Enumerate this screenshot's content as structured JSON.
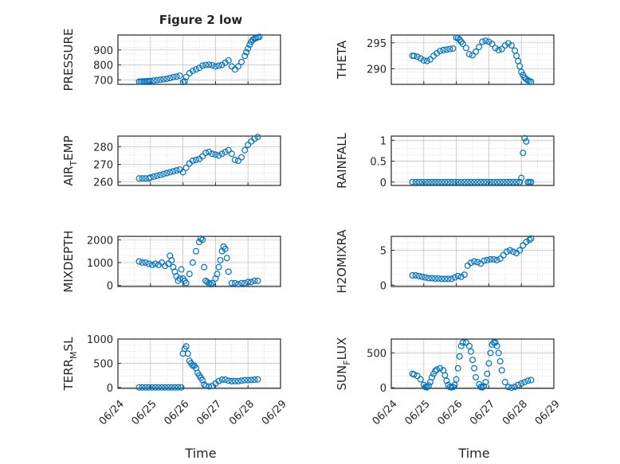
{
  "title": "Figure 2 low",
  "xlabel": "Time",
  "colors": {
    "marker": "#0072BD",
    "axis": "#262626",
    "grid": "#c8c8c8"
  },
  "x_ticks": [
    "06/24",
    "06/25",
    "06/26",
    "06/27",
    "06/28",
    "06/29"
  ],
  "chart_data": [
    {
      "type": "scatter",
      "name": "pressure",
      "ylabel": "PRESSURE",
      "ylim": [
        670,
        1000
      ],
      "yticks": [
        700,
        800,
        900
      ],
      "grid": true,
      "xlim": [
        "06/24",
        "06/29"
      ],
      "x": [
        0.65,
        0.7,
        0.75,
        0.8,
        0.85,
        0.9,
        0.95,
        1.0,
        1.1,
        1.2,
        1.3,
        1.4,
        1.5,
        1.6,
        1.7,
        1.8,
        1.9,
        2.0,
        2.05,
        2.1,
        2.2,
        2.3,
        2.4,
        2.5,
        2.6,
        2.7,
        2.8,
        2.9,
        3.0,
        3.1,
        3.2,
        3.3,
        3.4,
        3.5,
        3.6,
        3.7,
        3.8,
        3.9,
        3.95,
        4.0,
        4.05,
        4.1,
        4.15,
        4.2,
        4.25,
        4.3,
        4.35
      ],
      "y": [
        688,
        688,
        689,
        690,
        690,
        691,
        692,
        693,
        695,
        698,
        701,
        704,
        707,
        712,
        718,
        722,
        728,
        685,
        690,
        720,
        745,
        760,
        770,
        780,
        795,
        800,
        802,
        798,
        790,
        795,
        800,
        815,
        830,
        790,
        770,
        790,
        820,
        860,
        885,
        910,
        935,
        955,
        968,
        975,
        980,
        985,
        988
      ]
    },
    {
      "type": "scatter",
      "name": "theta",
      "ylabel": "THETA",
      "ylim": [
        287,
        296.5
      ],
      "yticks": [
        290,
        295
      ],
      "grid": true,
      "xlim": [
        "06/24",
        "06/29"
      ],
      "x": [
        0.65,
        0.7,
        0.8,
        0.9,
        1.0,
        1.1,
        1.2,
        1.3,
        1.4,
        1.5,
        1.6,
        1.7,
        1.8,
        1.9,
        2.0,
        2.05,
        2.1,
        2.15,
        2.2,
        2.3,
        2.4,
        2.5,
        2.6,
        2.7,
        2.8,
        2.9,
        3.0,
        3.1,
        3.2,
        3.3,
        3.4,
        3.5,
        3.6,
        3.7,
        3.8,
        3.85,
        3.9,
        3.95,
        4.0,
        4.05,
        4.1,
        4.15,
        4.2,
        4.25,
        4.3
      ],
      "y": [
        292.5,
        292.5,
        292.3,
        292.0,
        291.6,
        291.5,
        291.8,
        292.5,
        293.0,
        293.4,
        293.6,
        293.7,
        293.8,
        293.9,
        296.0,
        295.9,
        295.6,
        295.2,
        294.8,
        294.0,
        292.8,
        292.6,
        293.3,
        294.2,
        295.2,
        295.4,
        295.2,
        294.8,
        294.0,
        293.6,
        293.8,
        294.5,
        294.9,
        294.5,
        293.5,
        292.5,
        291.5,
        290.5,
        289.4,
        288.8,
        288.3,
        288.0,
        287.8,
        287.6,
        287.5
      ]
    },
    {
      "type": "scatter",
      "name": "air_temp",
      "ylabel": "AIR_TEMP",
      "ylim": [
        258,
        286
      ],
      "yticks": [
        260,
        270,
        280
      ],
      "grid": true,
      "xlim": [
        "06/24",
        "06/29"
      ],
      "x": [
        0.65,
        0.75,
        0.85,
        0.95,
        1.0,
        1.1,
        1.2,
        1.3,
        1.4,
        1.5,
        1.6,
        1.7,
        1.8,
        1.9,
        2.0,
        2.1,
        2.2,
        2.3,
        2.4,
        2.5,
        2.6,
        2.7,
        2.8,
        2.9,
        3.0,
        3.1,
        3.2,
        3.3,
        3.4,
        3.5,
        3.6,
        3.7,
        3.8,
        3.9,
        4.0,
        4.1,
        4.2,
        4.3
      ],
      "y": [
        262,
        262,
        262,
        262,
        262.5,
        263,
        263.5,
        264,
        264.5,
        265,
        265.5,
        266,
        266.5,
        267,
        265.5,
        268,
        270.5,
        272,
        272.5,
        273,
        274.5,
        276.5,
        277,
        276,
        275.5,
        275,
        276,
        277,
        278,
        276,
        272.5,
        272,
        274,
        278,
        281,
        283,
        284.5,
        285.5
      ]
    },
    {
      "type": "scatter",
      "name": "rainfall",
      "ylabel": "RAINFALL",
      "ylim": [
        -0.08,
        1.1
      ],
      "yticks": [
        0,
        0.5,
        1
      ],
      "grid": true,
      "xlim": [
        "06/24",
        "06/29"
      ],
      "x": [
        0.65,
        0.75,
        0.85,
        0.95,
        1.05,
        1.15,
        1.25,
        1.35,
        1.45,
        1.55,
        1.65,
        1.75,
        1.85,
        1.95,
        2.05,
        2.15,
        2.25,
        2.35,
        2.45,
        2.55,
        2.65,
        2.75,
        2.85,
        2.95,
        3.05,
        3.15,
        3.25,
        3.35,
        3.45,
        3.55,
        3.65,
        3.75,
        3.85,
        3.95,
        4.0,
        4.05,
        4.1,
        4.15,
        4.2,
        4.25,
        4.3
      ],
      "y": [
        0,
        0,
        0,
        0,
        0,
        0,
        0,
        0,
        0,
        0,
        0,
        0,
        0,
        0,
        0,
        0,
        0,
        0,
        0,
        0,
        0,
        0,
        0,
        0,
        0,
        0,
        0,
        0,
        0,
        0,
        0,
        0,
        0,
        0,
        0.1,
        0.7,
        1.05,
        0.97,
        0,
        0,
        0
      ]
    },
    {
      "type": "scatter",
      "name": "mixdepth",
      "ylabel": "MIXDEPTH",
      "ylim": [
        -50,
        2150
      ],
      "yticks": [
        0,
        1000,
        2000
      ],
      "grid": true,
      "xlim": [
        "06/24",
        "06/29"
      ],
      "x": [
        0.65,
        0.75,
        0.85,
        0.95,
        1.05,
        1.15,
        1.25,
        1.35,
        1.45,
        1.55,
        1.6,
        1.65,
        1.7,
        1.75,
        1.8,
        1.85,
        1.9,
        1.95,
        2.0,
        2.05,
        2.1,
        2.2,
        2.3,
        2.4,
        2.5,
        2.55,
        2.6,
        2.65,
        2.7,
        2.75,
        2.8,
        2.85,
        2.9,
        3.0,
        3.05,
        3.1,
        3.15,
        3.2,
        3.25,
        3.3,
        3.35,
        3.4,
        3.5,
        3.6,
        3.7,
        3.8,
        3.9,
        4.0,
        4.1,
        4.2,
        4.3
      ],
      "y": [
        1050,
        1000,
        1000,
        950,
        900,
        950,
        900,
        1000,
        850,
        950,
        1300,
        1100,
        800,
        600,
        400,
        200,
        300,
        700,
        300,
        200,
        100,
        500,
        1000,
        1500,
        1900,
        2050,
        2000,
        800,
        200,
        150,
        100,
        50,
        100,
        300,
        500,
        800,
        1100,
        1500,
        1700,
        1600,
        1200,
        600,
        100,
        100,
        50,
        100,
        100,
        150,
        150,
        200,
        200
      ]
    },
    {
      "type": "scatter",
      "name": "h2omixra",
      "ylabel": "H2OMIXRA",
      "ylim": [
        -0.2,
        7
      ],
      "yticks": [
        0,
        5
      ],
      "grid": true,
      "xlim": [
        "06/24",
        "06/29"
      ],
      "x": [
        0.65,
        0.75,
        0.85,
        0.95,
        1.05,
        1.15,
        1.25,
        1.35,
        1.45,
        1.55,
        1.65,
        1.75,
        1.85,
        1.95,
        2.05,
        2.15,
        2.25,
        2.35,
        2.45,
        2.55,
        2.65,
        2.75,
        2.85,
        2.95,
        3.05,
        3.15,
        3.25,
        3.35,
        3.45,
        3.55,
        3.65,
        3.75,
        3.85,
        3.95,
        4.05,
        4.15,
        4.25,
        4.3
      ],
      "y": [
        1.4,
        1.4,
        1.3,
        1.2,
        1.1,
        1.0,
        1.0,
        0.95,
        0.95,
        0.9,
        0.9,
        0.9,
        0.9,
        1.1,
        1.3,
        1.2,
        1.5,
        2.8,
        3.2,
        3.4,
        3.3,
        3.1,
        3.5,
        3.6,
        3.7,
        3.7,
        3.6,
        3.8,
        4.3,
        4.8,
        5.0,
        4.8,
        4.6,
        5.0,
        5.7,
        6.2,
        6.5,
        6.7
      ]
    },
    {
      "type": "scatter",
      "name": "terr_msl",
      "ylabel": "TERR_MSL",
      "ylim": [
        -20,
        1000
      ],
      "yticks": [
        0,
        500,
        1000
      ],
      "grid": true,
      "xlim": [
        "06/24",
        "06/29"
      ],
      "x": [
        0.65,
        0.75,
        0.85,
        0.95,
        1.05,
        1.15,
        1.25,
        1.35,
        1.45,
        1.55,
        1.65,
        1.75,
        1.85,
        1.95,
        2.0,
        2.05,
        2.1,
        2.15,
        2.2,
        2.25,
        2.3,
        2.35,
        2.4,
        2.45,
        2.5,
        2.55,
        2.6,
        2.65,
        2.7,
        2.8,
        2.9,
        3.0,
        3.1,
        3.2,
        3.3,
        3.4,
        3.5,
        3.6,
        3.7,
        3.8,
        3.9,
        4.0,
        4.1,
        4.2,
        4.3
      ],
      "y": [
        0,
        0,
        0,
        0,
        0,
        0,
        0,
        0,
        0,
        0,
        0,
        0,
        0,
        0,
        700,
        800,
        850,
        700,
        550,
        500,
        450,
        450,
        400,
        300,
        250,
        200,
        150,
        60,
        30,
        20,
        30,
        80,
        130,
        160,
        160,
        140,
        130,
        130,
        130,
        140,
        150,
        150,
        155,
        160,
        165
      ]
    },
    {
      "type": "scatter",
      "name": "sun_flux",
      "ylabel": "SUN_FLUX",
      "ylim": [
        -10,
        700
      ],
      "yticks": [
        0,
        500
      ],
      "grid": true,
      "xlim": [
        "06/24",
        "06/29"
      ],
      "x": [
        0.65,
        0.7,
        0.8,
        0.9,
        1.0,
        1.05,
        1.1,
        1.15,
        1.2,
        1.25,
        1.3,
        1.35,
        1.4,
        1.5,
        1.6,
        1.65,
        1.7,
        1.75,
        1.8,
        1.85,
        1.9,
        1.95,
        2.0,
        2.05,
        2.1,
        2.15,
        2.2,
        2.3,
        2.4,
        2.45,
        2.5,
        2.55,
        2.6,
        2.7,
        2.75,
        2.8,
        2.85,
        2.9,
        2.95,
        3.0,
        3.05,
        3.1,
        3.15,
        3.2,
        3.25,
        3.3,
        3.35,
        3.4,
        3.5,
        3.6,
        3.7,
        3.8,
        3.9,
        4.0,
        4.1,
        4.2,
        4.3
      ],
      "y": [
        200,
        190,
        170,
        120,
        40,
        10,
        5,
        30,
        80,
        150,
        200,
        240,
        260,
        280,
        250,
        180,
        100,
        40,
        10,
        5,
        10,
        40,
        120,
        280,
        450,
        600,
        650,
        650,
        600,
        520,
        400,
        280,
        150,
        50,
        10,
        5,
        20,
        80,
        200,
        350,
        500,
        620,
        650,
        650,
        600,
        500,
        380,
        250,
        80,
        10,
        0,
        10,
        40,
        60,
        80,
        100,
        110
      ]
    }
  ]
}
